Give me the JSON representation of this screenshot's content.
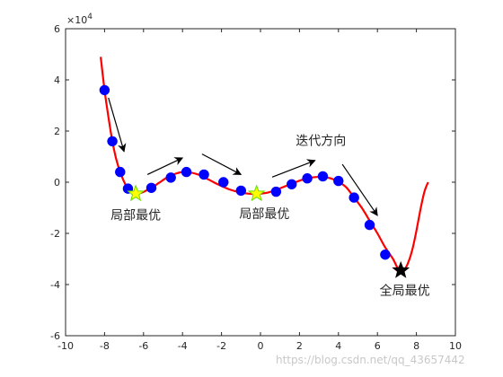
{
  "chart_data": {
    "type": "line",
    "xlim": [
      -10,
      10
    ],
    "ylim": [
      -60000,
      60000
    ],
    "x_ticks": [
      -10,
      -8,
      -6,
      -4,
      -2,
      0,
      2,
      4,
      6,
      8,
      10
    ],
    "y_ticks": [
      -6,
      -4,
      -2,
      0,
      2,
      4,
      6
    ],
    "y_tick_labels": [
      "-6",
      "-4",
      "-2",
      "0",
      "2",
      "4",
      "6"
    ],
    "x_tick_labels": [
      "-10",
      "-8",
      "-6",
      "-4",
      "-2",
      "0",
      "2",
      "4",
      "6",
      "8",
      "10"
    ],
    "y_exponent_label": "×10",
    "y_exponent_power": "4",
    "grid": false,
    "series": [
      {
        "kind": "curve",
        "color": "#ff0000",
        "x": [
          -8.2,
          -8.0,
          -7.8,
          -7.6,
          -7.4,
          -7.2,
          -7.0,
          -6.8,
          -6.6,
          -6.4,
          -6.2,
          -6.0,
          -5.6,
          -5.2,
          -4.8,
          -4.4,
          -4.0,
          -3.6,
          -3.2,
          -2.8,
          -2.4,
          -2.0,
          -1.6,
          -1.2,
          -0.8,
          -0.4,
          0.0,
          0.4,
          0.8,
          1.2,
          1.6,
          2.0,
          2.4,
          2.8,
          3.2,
          3.6,
          4.0,
          4.4,
          4.8,
          5.2,
          5.6,
          6.0,
          6.4,
          6.8,
          7.0,
          7.2,
          7.4,
          7.6,
          7.8,
          8.0,
          8.2,
          8.4,
          8.6
        ],
        "y": [
          49000,
          36000,
          25500,
          16000,
          9000,
          4000,
          200,
          -2500,
          -4000,
          -4500,
          -4300,
          -3800,
          -2200,
          -200,
          1800,
          3200,
          4000,
          3800,
          3000,
          1600,
          0,
          -1500,
          -2800,
          -3700,
          -4300,
          -4600,
          -4500,
          -4000,
          -3000,
          -1800,
          -600,
          600,
          1500,
          2000,
          2100,
          1500,
          200,
          -2000,
          -6000,
          -10000,
          -15000,
          -20000,
          -25500,
          -30000,
          -33000,
          -34500,
          -34000,
          -31000,
          -26000,
          -19000,
          -11000,
          -4000,
          0
        ]
      },
      {
        "kind": "markers",
        "color": "#0000ff",
        "x": [
          -8.0,
          -7.6,
          -7.2,
          -6.8,
          -5.6,
          -4.6,
          -3.8,
          -2.9,
          -1.9,
          -1.0,
          0.8,
          1.6,
          2.4,
          3.2,
          4.0,
          4.8,
          5.6,
          6.4
        ],
        "y": [
          36000,
          16000,
          4000,
          -2500,
          -2200,
          1800,
          4000,
          3000,
          0,
          -3300,
          -3700,
          -800,
          1500,
          2300,
          500,
          -6000,
          -16700,
          -28300
        ]
      }
    ],
    "points": [
      {
        "name": "local-optimum-left",
        "x": -6.4,
        "y": -4500,
        "shape": "star",
        "color": "#ffff00",
        "edge": "#66dd00"
      },
      {
        "name": "local-optimum-center",
        "x": -0.2,
        "y": -4500,
        "shape": "star",
        "color": "#ffff00",
        "edge": "#66dd00"
      },
      {
        "name": "global-optimum",
        "x": 7.2,
        "y": -34500,
        "shape": "star",
        "color": "#000000",
        "edge": "#000000"
      }
    ],
    "arrows": [
      {
        "name": "arrow-1",
        "from": [
          -7.8,
          33000
        ],
        "to": [
          -7.0,
          12000
        ]
      },
      {
        "name": "arrow-2",
        "from": [
          -5.8,
          3000
        ],
        "to": [
          -4.0,
          9500
        ]
      },
      {
        "name": "arrow-3",
        "from": [
          -3.0,
          11000
        ],
        "to": [
          -1.0,
          3000
        ]
      },
      {
        "name": "arrow-4",
        "from": [
          0.6,
          2000
        ],
        "to": [
          2.8,
          8500
        ]
      },
      {
        "name": "arrow-5",
        "from": [
          4.2,
          7000
        ],
        "to": [
          6.0,
          -13000
        ]
      }
    ],
    "annotations": [
      {
        "name": "label-local-left",
        "text": "局部最优",
        "x": -6.4,
        "y": -14500
      },
      {
        "name": "label-local-center",
        "text": "局部最优",
        "x": 0.2,
        "y": -14000
      },
      {
        "name": "label-direction",
        "text": "迭代方向",
        "x": 3.1,
        "y": 14500
      },
      {
        "name": "label-global",
        "text": "全局最优",
        "x": 7.4,
        "y": -44000
      }
    ]
  },
  "watermark": "https://blog.csdn.net/qq_43657442"
}
